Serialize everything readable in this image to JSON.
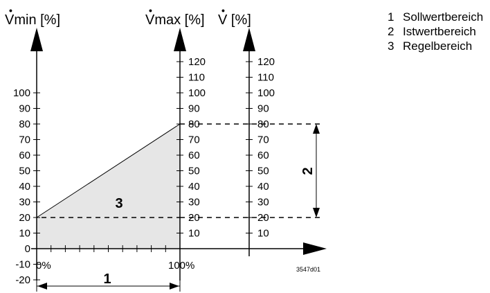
{
  "axes": {
    "vmin": {
      "title": "Vmin [%]",
      "ticks": [
        "100",
        "90",
        "80",
        "70",
        "60",
        "50",
        "40",
        "30",
        "20",
        "10",
        "0",
        "-10",
        "-20"
      ]
    },
    "vmax": {
      "title": "Vmax [%]",
      "ticks": [
        "120",
        "110",
        "100",
        "90",
        "80",
        "70",
        "60",
        "50",
        "40",
        "30",
        "20",
        "10"
      ]
    },
    "v": {
      "title": "V [%]",
      "ticks": [
        "120",
        "110",
        "100",
        "90",
        "80",
        "70",
        "60",
        "50",
        "40",
        "30",
        "20",
        "10"
      ]
    },
    "x": {
      "start_label": "0%",
      "end_label": "100%"
    }
  },
  "region_labels": {
    "setpoint": "1",
    "actual": "2",
    "control": "3"
  },
  "legend": [
    {
      "num": "1",
      "text": "Sollwertbereich"
    },
    {
      "num": "2",
      "text": "Istwertbereich"
    },
    {
      "num": "3",
      "text": "Regelbereich"
    }
  ],
  "figure_code": "3547d01",
  "colors": {
    "fill": "#e6e6e6",
    "line": "#000000"
  }
}
